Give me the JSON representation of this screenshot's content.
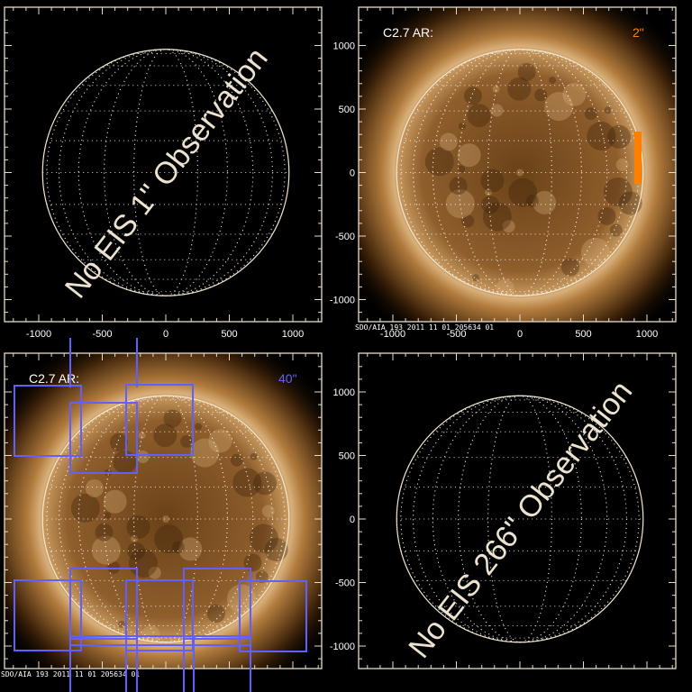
{
  "colors": {
    "axis": "#e8dcc8",
    "grid": "#ffffff",
    "limb": "#f2e6d0",
    "orange": "#ff7f00",
    "blue": "#6060ff",
    "sun_core": "#8a5a28",
    "sun_corona": "#f0d2a0"
  },
  "chart_data": [
    {
      "type": "image",
      "panel": "top-left",
      "xlim": [
        -1200,
        1200
      ],
      "ylim": [
        -1200,
        1200
      ],
      "x_ticks": [
        "-1000",
        "-500",
        "0",
        "500",
        "1000"
      ],
      "y_ticks": [],
      "overlay_text": "No EIS 1\" Observation",
      "has_image": false
    },
    {
      "type": "image",
      "panel": "top-right",
      "xlim": [
        -1200,
        1200
      ],
      "ylim": [
        -1200,
        1200
      ],
      "x_ticks": [
        "-1000",
        "-500",
        "0",
        "500",
        "1000"
      ],
      "y_ticks": [
        "1000",
        "500",
        "0",
        "-500",
        "-1000"
      ],
      "label": "C2.7 AR:",
      "slit_label": "2\"",
      "slit_color": "#ff7f00",
      "stamp": "SDO/AIA 193   2011 11 01 205634 01",
      "has_image": true
    },
    {
      "type": "image",
      "panel": "bottom-left",
      "xlim": [
        -1200,
        1200
      ],
      "ylim": [
        -1200,
        1200
      ],
      "x_ticks": [],
      "y_ticks": [],
      "label": "C2.7 AR:",
      "slit_label": "40\"",
      "slit_color": "#6060ff",
      "stamp": "SDO/AIA 193   2011 11 01 205634 01",
      "has_image": true
    },
    {
      "type": "image",
      "panel": "bottom-right",
      "xlim": [
        -1200,
        1200
      ],
      "ylim": [
        -1200,
        1200
      ],
      "x_ticks": [],
      "y_ticks": [
        "1000",
        "500",
        "0",
        "-500",
        "-1000"
      ],
      "overlay_text": "No EIS 266\" Observation",
      "has_image": false
    }
  ]
}
